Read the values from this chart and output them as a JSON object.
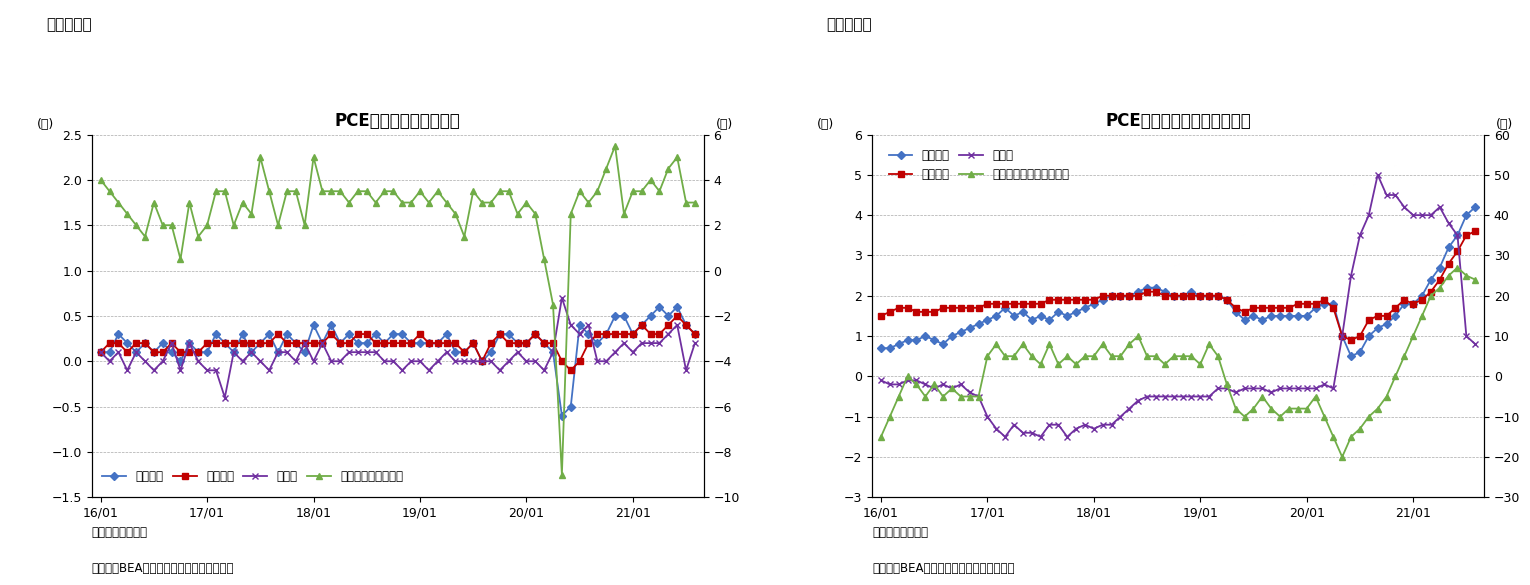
{
  "chart1": {
    "title": "PCE価格指数（前月比）",
    "label": "（図表６）",
    "ylabel_left": "(％)",
    "ylabel_right": "(％)",
    "ylim_left": [
      -1.5,
      2.5
    ],
    "ylim_right": [
      -10,
      6
    ],
    "yticks_left": [
      -1.5,
      -1.0,
      -0.5,
      0.0,
      0.5,
      1.0,
      1.5,
      2.0,
      2.5
    ],
    "yticks_right": [
      -10,
      -8,
      -6,
      -4,
      -2,
      0,
      2,
      4,
      6
    ],
    "note1": "（注）季節調整済",
    "note2": "（資料）BEAよりニッセイ基礎研究所作成",
    "legend": [
      "総合指数",
      "コア指数",
      "食料品",
      "エネルギー（右軸）"
    ],
    "colors": [
      "#4472C4",
      "#C00000",
      "#7030A0",
      "#70AD47"
    ],
    "markers": [
      "D",
      "s",
      "x",
      "^"
    ],
    "x_labels": [
      "16/01",
      "17/01",
      "18/01",
      "19/01",
      "20/01",
      "21/01"
    ],
    "total": [
      0.1,
      0.1,
      0.3,
      0.2,
      0.1,
      0.2,
      0.1,
      0.2,
      0.1,
      0.0,
      0.2,
      0.1,
      0.1,
      0.3,
      0.2,
      0.1,
      0.3,
      0.1,
      0.2,
      0.3,
      0.1,
      0.3,
      0.2,
      0.1,
      0.4,
      0.2,
      0.4,
      0.2,
      0.3,
      0.2,
      0.2,
      0.3,
      0.2,
      0.3,
      0.3,
      0.2,
      0.2,
      0.2,
      0.2,
      0.3,
      0.1,
      0.1,
      0.2,
      0.0,
      0.1,
      0.3,
      0.3,
      0.2,
      0.2,
      0.3,
      0.2,
      0.1,
      -0.6,
      -0.5,
      0.4,
      0.3,
      0.2,
      0.3,
      0.5,
      0.5,
      0.3,
      0.4,
      0.5,
      0.6,
      0.5,
      0.6,
      0.4,
      0.3
    ],
    "core": [
      0.1,
      0.2,
      0.2,
      0.1,
      0.2,
      0.2,
      0.1,
      0.1,
      0.2,
      0.1,
      0.1,
      0.1,
      0.2,
      0.2,
      0.2,
      0.2,
      0.2,
      0.2,
      0.2,
      0.2,
      0.3,
      0.2,
      0.2,
      0.2,
      0.2,
      0.2,
      0.3,
      0.2,
      0.2,
      0.3,
      0.3,
      0.2,
      0.2,
      0.2,
      0.2,
      0.2,
      0.3,
      0.2,
      0.2,
      0.2,
      0.2,
      0.1,
      0.2,
      0.0,
      0.2,
      0.3,
      0.2,
      0.2,
      0.2,
      0.3,
      0.2,
      0.2,
      0.0,
      -0.1,
      0.0,
      0.2,
      0.3,
      0.3,
      0.3,
      0.3,
      0.3,
      0.4,
      0.3,
      0.3,
      0.4,
      0.5,
      0.4,
      0.3
    ],
    "food": [
      0.1,
      0.0,
      0.1,
      -0.1,
      0.1,
      0.0,
      -0.1,
      0.0,
      0.2,
      -0.1,
      0.2,
      0.0,
      -0.1,
      -0.1,
      -0.4,
      0.1,
      0.0,
      0.1,
      0.0,
      -0.1,
      0.1,
      0.1,
      0.0,
      0.2,
      0.0,
      0.2,
      0.0,
      0.0,
      0.1,
      0.1,
      0.1,
      0.1,
      0.0,
      0.0,
      -0.1,
      0.0,
      0.0,
      -0.1,
      0.0,
      0.1,
      0.0,
      0.0,
      0.0,
      0.0,
      0.0,
      -0.1,
      0.0,
      0.1,
      0.0,
      0.0,
      -0.1,
      0.1,
      0.7,
      0.4,
      0.3,
      0.4,
      0.0,
      0.0,
      0.1,
      0.2,
      0.1,
      0.2,
      0.2,
      0.2,
      0.3,
      0.4,
      -0.1,
      0.2
    ],
    "energy": [
      4.0,
      3.5,
      3.0,
      2.5,
      2.0,
      1.5,
      3.0,
      2.0,
      2.0,
      0.5,
      3.0,
      1.5,
      2.0,
      3.5,
      3.5,
      2.0,
      3.0,
      2.5,
      5.0,
      3.5,
      2.0,
      3.5,
      3.5,
      2.0,
      5.0,
      3.5,
      3.5,
      3.5,
      3.0,
      3.5,
      3.5,
      3.0,
      3.5,
      3.5,
      3.0,
      3.0,
      3.5,
      3.0,
      3.5,
      3.0,
      2.5,
      1.5,
      3.5,
      3.0,
      3.0,
      3.5,
      3.5,
      2.5,
      3.0,
      2.5,
      0.5,
      -1.5,
      -9.0,
      2.5,
      3.5,
      3.0,
      3.5,
      4.5,
      5.5,
      2.5,
      3.5,
      3.5,
      4.0,
      3.5,
      4.5,
      5.0,
      3.0,
      3.0
    ]
  },
  "chart2": {
    "title": "PCE価格指数（前年同月比）",
    "label": "（図表７）",
    "ylabel_left": "(％)",
    "ylabel_right": "(％)",
    "ylim_left": [
      -3,
      6
    ],
    "ylim_right": [
      -30,
      60
    ],
    "yticks_left": [
      -3,
      -2,
      -1,
      0,
      1,
      2,
      3,
      4,
      5,
      6
    ],
    "yticks_right": [
      -30,
      -20,
      -10,
      0,
      10,
      20,
      30,
      40,
      50,
      60
    ],
    "note1": "（注）季節調整済",
    "note2": "（資料）BEAよりニッセイ基礎研究所作成",
    "legend": [
      "総合指数",
      "コア指数",
      "食料品",
      "エネルギー関連（右軸）"
    ],
    "colors": [
      "#4472C4",
      "#C00000",
      "#7030A0",
      "#70AD47"
    ],
    "markers": [
      "D",
      "s",
      "x",
      "^"
    ],
    "x_labels": [
      "16/01",
      "17/01",
      "18/01",
      "19/01",
      "20/01",
      "21/01"
    ],
    "total": [
      0.7,
      0.7,
      0.8,
      0.9,
      0.9,
      1.0,
      0.9,
      0.8,
      1.0,
      1.1,
      1.2,
      1.3,
      1.4,
      1.5,
      1.7,
      1.5,
      1.6,
      1.4,
      1.5,
      1.4,
      1.6,
      1.5,
      1.6,
      1.7,
      1.8,
      1.9,
      2.0,
      2.0,
      2.0,
      2.1,
      2.2,
      2.2,
      2.1,
      2.0,
      2.0,
      2.1,
      2.0,
      2.0,
      2.0,
      1.9,
      1.6,
      1.4,
      1.5,
      1.4,
      1.5,
      1.5,
      1.5,
      1.5,
      1.5,
      1.7,
      1.8,
      1.8,
      1.0,
      0.5,
      0.6,
      1.0,
      1.2,
      1.3,
      1.5,
      1.8,
      1.8,
      2.0,
      2.4,
      2.7,
      3.2,
      3.5,
      4.0,
      4.2
    ],
    "core": [
      1.5,
      1.6,
      1.7,
      1.7,
      1.6,
      1.6,
      1.6,
      1.7,
      1.7,
      1.7,
      1.7,
      1.7,
      1.8,
      1.8,
      1.8,
      1.8,
      1.8,
      1.8,
      1.8,
      1.9,
      1.9,
      1.9,
      1.9,
      1.9,
      1.9,
      2.0,
      2.0,
      2.0,
      2.0,
      2.0,
      2.1,
      2.1,
      2.0,
      2.0,
      2.0,
      2.0,
      2.0,
      2.0,
      2.0,
      1.9,
      1.7,
      1.6,
      1.7,
      1.7,
      1.7,
      1.7,
      1.7,
      1.8,
      1.8,
      1.8,
      1.9,
      1.7,
      1.0,
      0.9,
      1.0,
      1.4,
      1.5,
      1.5,
      1.7,
      1.9,
      1.8,
      1.9,
      2.1,
      2.4,
      2.8,
      3.1,
      3.5,
      3.6
    ],
    "food": [
      -0.1,
      -0.2,
      -0.2,
      -0.1,
      -0.1,
      -0.2,
      -0.3,
      -0.2,
      -0.3,
      -0.2,
      -0.4,
      -0.5,
      -1.0,
      -1.3,
      -1.5,
      -1.2,
      -1.4,
      -1.4,
      -1.5,
      -1.2,
      -1.2,
      -1.5,
      -1.3,
      -1.2,
      -1.3,
      -1.2,
      -1.2,
      -1.0,
      -0.8,
      -0.6,
      -0.5,
      -0.5,
      -0.5,
      -0.5,
      -0.5,
      -0.5,
      -0.5,
      -0.5,
      -0.3,
      -0.3,
      -0.4,
      -0.3,
      -0.3,
      -0.3,
      -0.4,
      -0.3,
      -0.3,
      -0.3,
      -0.3,
      -0.3,
      -0.2,
      -0.3,
      1.0,
      2.5,
      3.5,
      4.0,
      5.0,
      4.5,
      4.5,
      4.2,
      4.0,
      4.0,
      4.0,
      4.2,
      3.8,
      3.5,
      1.0,
      0.8
    ],
    "energy": [
      -15.0,
      -10.0,
      -5.0,
      0.0,
      -2.0,
      -5.0,
      -2.0,
      -5.0,
      -3.0,
      -5.0,
      -5.0,
      -5.0,
      5.0,
      8.0,
      5.0,
      5.0,
      8.0,
      5.0,
      3.0,
      8.0,
      3.0,
      5.0,
      3.0,
      5.0,
      5.0,
      8.0,
      5.0,
      5.0,
      8.0,
      10.0,
      5.0,
      5.0,
      3.0,
      5.0,
      5.0,
      5.0,
      3.0,
      8.0,
      5.0,
      -2.0,
      -8.0,
      -10.0,
      -8.0,
      -5.0,
      -8.0,
      -10.0,
      -8.0,
      -8.0,
      -8.0,
      -5.0,
      -10.0,
      -15.0,
      -20.0,
      -15.0,
      -13.0,
      -10.0,
      -8.0,
      -5.0,
      0.0,
      5.0,
      10.0,
      15.0,
      20.0,
      22.0,
      25.0,
      27.0,
      25.0,
      24.0
    ]
  }
}
